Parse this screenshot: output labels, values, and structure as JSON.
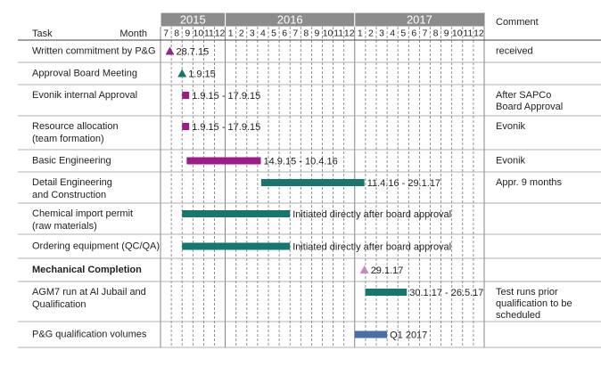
{
  "chart_data": {
    "type": "gantt",
    "task_header": "Task",
    "month_header": "Month",
    "comment_header": "Comment",
    "xlim": [
      6,
      36
    ],
    "years": [
      {
        "label": "2015",
        "start": 6,
        "end": 12
      },
      {
        "label": "2016",
        "start": 12,
        "end": 24
      },
      {
        "label": "2017",
        "start": 24,
        "end": 36
      }
    ],
    "xticks": [
      {
        "value": 6,
        "label": "7"
      },
      {
        "value": 7,
        "label": "8"
      },
      {
        "value": 8,
        "label": "9"
      },
      {
        "value": 9,
        "label": "10"
      },
      {
        "value": 10,
        "label": "11"
      },
      {
        "value": 11,
        "label": "12"
      },
      {
        "value": 12,
        "label": "1"
      },
      {
        "value": 13,
        "label": "2"
      },
      {
        "value": 14,
        "label": "3"
      },
      {
        "value": 15,
        "label": "4"
      },
      {
        "value": 16,
        "label": "5"
      },
      {
        "value": 17,
        "label": "6"
      },
      {
        "value": 18,
        "label": "7"
      },
      {
        "value": 19,
        "label": "8"
      },
      {
        "value": 20,
        "label": "9"
      },
      {
        "value": 21,
        "label": "10"
      },
      {
        "value": 22,
        "label": "11"
      },
      {
        "value": 23,
        "label": "12"
      },
      {
        "value": 24,
        "label": "1"
      },
      {
        "value": 25,
        "label": "2"
      },
      {
        "value": 26,
        "label": "3"
      },
      {
        "value": 27,
        "label": "4"
      },
      {
        "value": 28,
        "label": "5"
      },
      {
        "value": 29,
        "label": "6"
      },
      {
        "value": 30,
        "label": "7"
      },
      {
        "value": 31,
        "label": "8"
      },
      {
        "value": 32,
        "label": "9"
      },
      {
        "value": 33,
        "label": "10"
      },
      {
        "value": 34,
        "label": "11"
      },
      {
        "value": 35,
        "label": "12"
      }
    ],
    "tasks": [
      {
        "name": [
          "Written commitment  by P&G"
        ],
        "marker": "triangle",
        "color": "#8e2a84",
        "start": 6.87,
        "label": "28.7.15",
        "comment": [
          "received"
        ]
      },
      {
        "name": [
          "Approval Board Meeting"
        ],
        "marker": "triangle",
        "color": "#17776f",
        "start": 8,
        "label": "1.9.15"
      },
      {
        "name": [
          "Evonik internal Approval"
        ],
        "marker": "bar",
        "color": "#9c1d87",
        "start": 8,
        "end": 8.53,
        "label": "1.9.15 - 17.9.15",
        "comment": [
          "After SAPCo",
          "Board Approval"
        ]
      },
      {
        "name": [
          "Resource allocation",
          "(team formation)"
        ],
        "marker": "bar",
        "color": "#9c1d87",
        "start": 8,
        "end": 8.53,
        "label": "1.9.15 - 17.9.15",
        "comment": [
          "Evonik"
        ]
      },
      {
        "name": [
          "Basic Engineering"
        ],
        "marker": "bar",
        "color": "#9c1d87",
        "start": 8.43,
        "end": 15.3,
        "label": "14.9.15 - 10.4.16",
        "comment": [
          "Evonik"
        ]
      },
      {
        "name": [
          "Detail Engineering",
          "and Construction"
        ],
        "marker": "bar",
        "color": "#17776f",
        "start": 15.33,
        "end": 24.9,
        "label": "11.4.16 - 29.1.17",
        "comment": [
          "Appr. 9 months"
        ]
      },
      {
        "name": [
          "Chemical import permit",
          "(raw materials)"
        ],
        "marker": "bar",
        "color": "#17776f",
        "start": 8,
        "end": 18,
        "label": "Initiated directly after board approval"
      },
      {
        "name": [
          "Ordering equipment  (QC/QA)"
        ],
        "marker": "bar",
        "color": "#17776f",
        "start": 8,
        "end": 18,
        "label": "Initiated directly after board approval"
      },
      {
        "name": [
          "Mechanical Completion"
        ],
        "bold": true,
        "marker": "triangle",
        "color": "#c98ac0",
        "start": 24.9,
        "label": "29.1.17"
      },
      {
        "name": [
          "AGM7  run at Al Jubail and",
          "Qualification"
        ],
        "marker": "bar",
        "color": "#17776f",
        "start": 24.97,
        "end": 28.83,
        "label": "30.1.17 - 26.5.17",
        "comment": [
          "Test runs prior",
          "qualification to be",
          "scheduled"
        ]
      },
      {
        "name": [
          "P&G qualification volumes"
        ],
        "marker": "bar",
        "color": "#4a6fa5",
        "start": 24,
        "end": 27,
        "label": "Q1 2017"
      }
    ]
  }
}
